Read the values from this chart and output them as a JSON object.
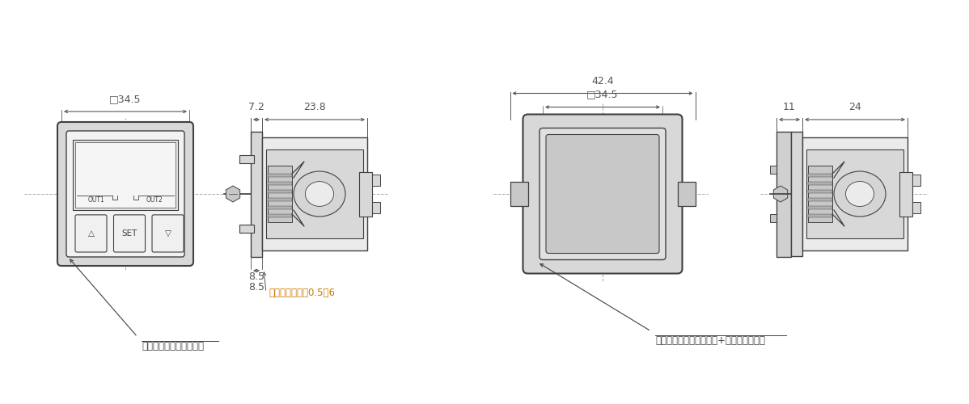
{
  "bg_color": "#ffffff",
  "lc": "#404040",
  "gc": "#c0c0c0",
  "lgc": "#d8d8d8",
  "llgc": "#ebebeb",
  "dc": "#555555",
  "orange": "#cc7700",
  "clc": "#aaaaaa",
  "label1": "パネルマウントアダプタ",
  "label2": "パネル厚み寸法0.5～6",
  "label3": "パネルマウントアダプタ+前面保護カバー",
  "d34_5": "□34.5",
  "d42_4": "42.4",
  "d34_5b": "□34.5",
  "d7_2": "7.2",
  "d23_8": "23.8",
  "d8_5": "8.5",
  "d11": "11",
  "d24": "24"
}
